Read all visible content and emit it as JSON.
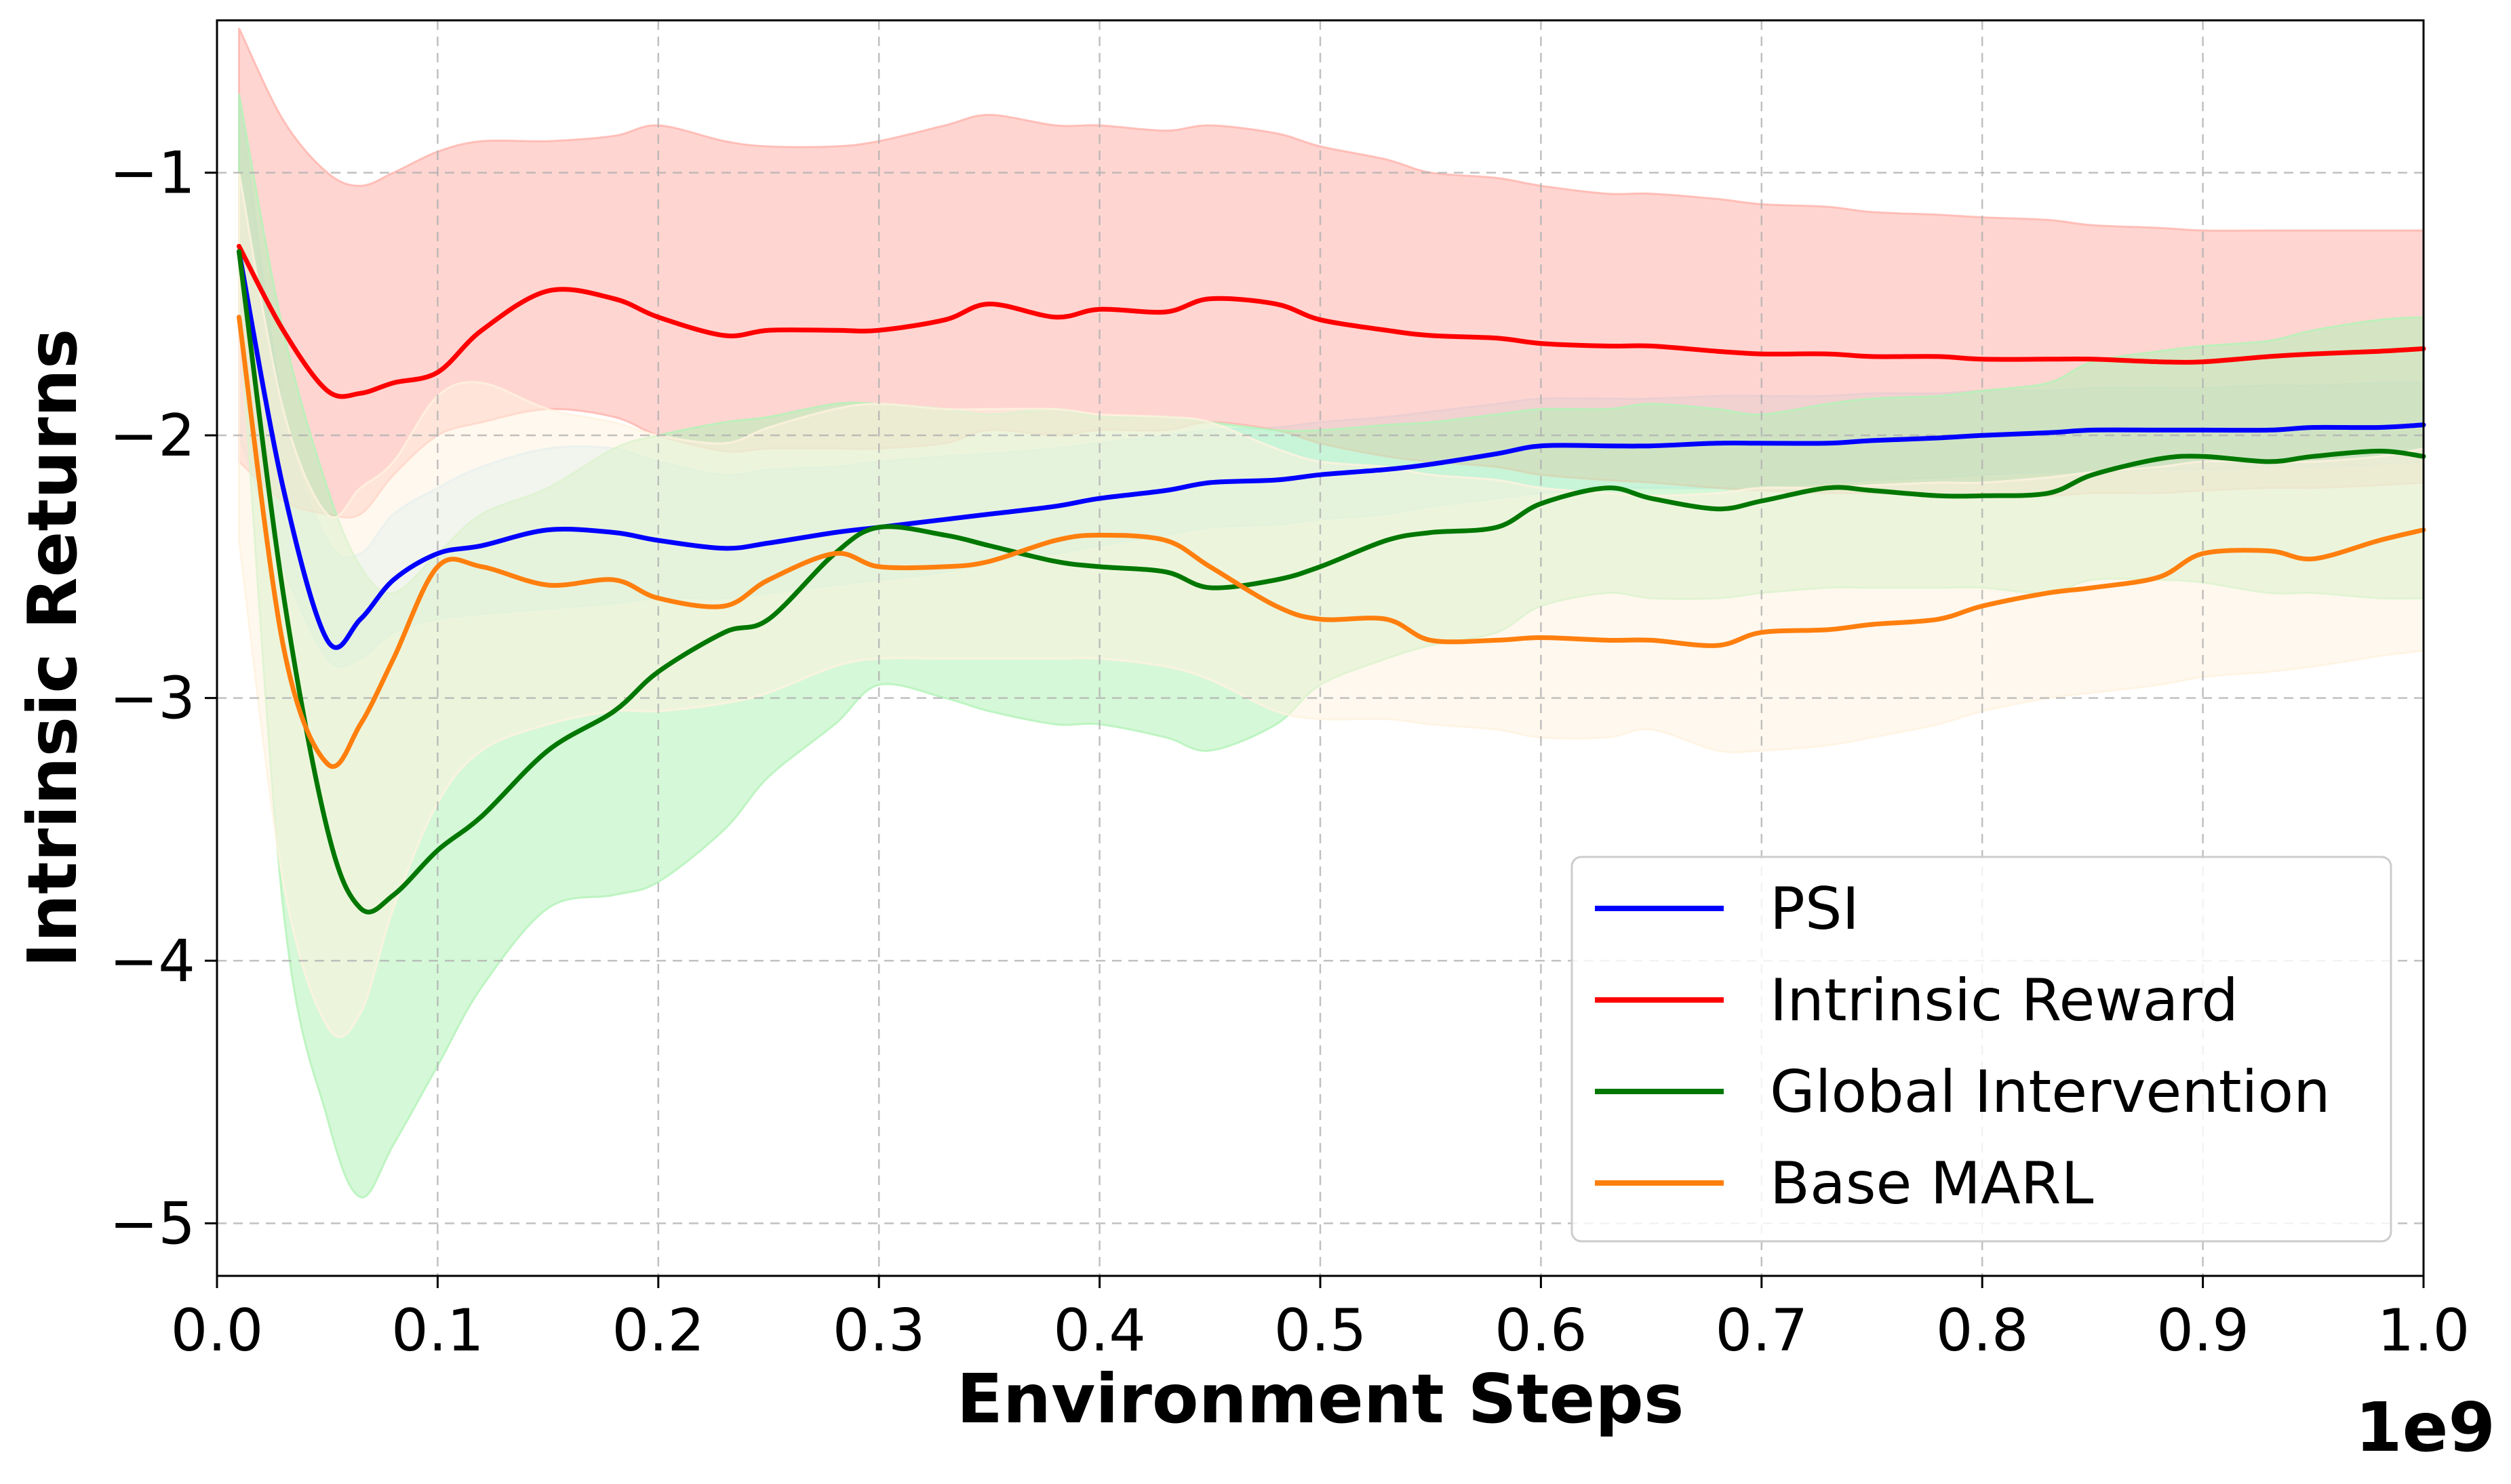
{
  "chart_data": {
    "type": "line",
    "title": "",
    "xlabel": "Environment Steps",
    "ylabel": "Intrinsic Returns",
    "x_offset_label": "1e9",
    "xlim": [
      0.0,
      1.0
    ],
    "ylim": [
      -5.2,
      -0.42
    ],
    "xticks": [
      0.0,
      0.1,
      0.2,
      0.3,
      0.4,
      0.5,
      0.6,
      0.7,
      0.8,
      0.9,
      1.0
    ],
    "xtick_labels": [
      "0.0",
      "0.1",
      "0.2",
      "0.3",
      "0.4",
      "0.5",
      "0.6",
      "0.7",
      "0.8",
      "0.9",
      "1.0"
    ],
    "yticks": [
      -5,
      -4,
      -3,
      -2,
      -1
    ],
    "ytick_labels": [
      "−5",
      "−4",
      "−3",
      "−2",
      "−1"
    ],
    "grid": true,
    "legend_position": "bottom-right",
    "x": [
      0.01,
      0.03,
      0.05,
      0.065,
      0.08,
      0.1,
      0.12,
      0.15,
      0.18,
      0.2,
      0.23,
      0.25,
      0.28,
      0.3,
      0.33,
      0.35,
      0.38,
      0.4,
      0.43,
      0.45,
      0.48,
      0.5,
      0.53,
      0.55,
      0.58,
      0.6,
      0.63,
      0.65,
      0.68,
      0.7,
      0.73,
      0.75,
      0.78,
      0.8,
      0.83,
      0.85,
      0.88,
      0.9,
      0.93,
      0.95,
      0.98,
      1.0
    ],
    "series": [
      {
        "name": "PSI",
        "color": "#0000ff",
        "band_color": "#cceeff",
        "values": [
          -1.3,
          -2.2,
          -2.78,
          -2.7,
          -2.55,
          -2.45,
          -2.42,
          -2.36,
          -2.37,
          -2.4,
          -2.43,
          -2.41,
          -2.37,
          -2.35,
          -2.32,
          -2.3,
          -2.27,
          -2.24,
          -2.21,
          -2.18,
          -2.17,
          -2.15,
          -2.13,
          -2.11,
          -2.07,
          -2.04,
          -2.04,
          -2.04,
          -2.03,
          -2.03,
          -2.03,
          -2.02,
          -2.01,
          -2.0,
          -1.99,
          -1.98,
          -1.98,
          -1.98,
          -1.98,
          -1.97,
          -1.97,
          -1.96
        ],
        "lower": [
          -2.0,
          -2.5,
          -2.85,
          -2.85,
          -2.75,
          -2.7,
          -2.68,
          -2.66,
          -2.64,
          -2.62,
          -2.62,
          -2.6,
          -2.57,
          -2.55,
          -2.52,
          -2.48,
          -2.45,
          -2.42,
          -2.38,
          -2.35,
          -2.34,
          -2.32,
          -2.3,
          -2.27,
          -2.24,
          -2.22,
          -2.2,
          -2.2,
          -2.2,
          -2.19,
          -2.18,
          -2.17,
          -2.16,
          -2.15,
          -2.14,
          -2.14,
          -2.13,
          -2.13,
          -2.12,
          -2.12,
          -2.11,
          -2.1
        ],
        "upper": [
          -0.7,
          -1.9,
          -2.4,
          -2.45,
          -2.3,
          -2.2,
          -2.12,
          -2.05,
          -2.05,
          -2.1,
          -2.15,
          -2.13,
          -2.12,
          -2.1,
          -2.08,
          -2.07,
          -2.05,
          -2.03,
          -2.0,
          -1.98,
          -1.97,
          -1.95,
          -1.93,
          -1.91,
          -1.88,
          -1.86,
          -1.86,
          -1.86,
          -1.85,
          -1.85,
          -1.85,
          -1.84,
          -1.84,
          -1.83,
          -1.83,
          -1.82,
          -1.82,
          -1.82,
          -1.81,
          -1.81,
          -1.8,
          -1.8
        ]
      },
      {
        "name": "Intrinsic Reward",
        "color": "#ff0000",
        "band_color": "#ffb3ab",
        "values": [
          -1.28,
          -1.6,
          -1.83,
          -1.84,
          -1.8,
          -1.76,
          -1.6,
          -1.45,
          -1.48,
          -1.55,
          -1.62,
          -1.6,
          -1.6,
          -1.6,
          -1.56,
          -1.5,
          -1.55,
          -1.52,
          -1.53,
          -1.48,
          -1.5,
          -1.56,
          -1.6,
          -1.62,
          -1.63,
          -1.65,
          -1.66,
          -1.66,
          -1.68,
          -1.69,
          -1.69,
          -1.7,
          -1.7,
          -1.71,
          -1.71,
          -1.71,
          -1.72,
          -1.72,
          -1.7,
          -1.69,
          -1.68,
          -1.67
        ],
        "lower": [
          -2.1,
          -2.25,
          -2.3,
          -2.3,
          -2.15,
          -2.0,
          -1.95,
          -1.9,
          -1.93,
          -2.0,
          -2.06,
          -2.05,
          -2.05,
          -2.05,
          -2.03,
          -1.98,
          -2.0,
          -1.98,
          -1.98,
          -1.95,
          -1.98,
          -2.03,
          -2.08,
          -2.1,
          -2.12,
          -2.15,
          -2.17,
          -2.18,
          -2.2,
          -2.21,
          -2.22,
          -2.22,
          -2.23,
          -2.23,
          -2.23,
          -2.22,
          -2.22,
          -2.21,
          -2.2,
          -2.2,
          -2.19,
          -2.18
        ],
        "upper": [
          -0.45,
          -0.8,
          -1.0,
          -1.05,
          -1.0,
          -0.92,
          -0.88,
          -0.88,
          -0.86,
          -0.82,
          -0.88,
          -0.9,
          -0.9,
          -0.88,
          -0.82,
          -0.78,
          -0.82,
          -0.82,
          -0.84,
          -0.82,
          -0.85,
          -0.9,
          -0.95,
          -1.0,
          -1.02,
          -1.05,
          -1.08,
          -1.08,
          -1.1,
          -1.12,
          -1.13,
          -1.15,
          -1.16,
          -1.17,
          -1.18,
          -1.2,
          -1.21,
          -1.22,
          -1.22,
          -1.22,
          -1.22,
          -1.22
        ]
      },
      {
        "name": "Global Intervention",
        "color": "#007700",
        "band_color": "#b3f2b8",
        "values": [
          -1.3,
          -2.6,
          -3.5,
          -3.8,
          -3.75,
          -3.58,
          -3.45,
          -3.2,
          -3.05,
          -2.9,
          -2.75,
          -2.7,
          -2.45,
          -2.35,
          -2.38,
          -2.42,
          -2.48,
          -2.5,
          -2.52,
          -2.58,
          -2.55,
          -2.5,
          -2.4,
          -2.37,
          -2.35,
          -2.26,
          -2.2,
          -2.24,
          -2.28,
          -2.25,
          -2.2,
          -2.21,
          -2.23,
          -2.23,
          -2.22,
          -2.15,
          -2.09,
          -2.08,
          -2.1,
          -2.08,
          -2.06,
          -2.08
        ],
        "lower": [
          -1.5,
          -3.8,
          -4.6,
          -4.9,
          -4.7,
          -4.4,
          -4.1,
          -3.8,
          -3.75,
          -3.7,
          -3.5,
          -3.3,
          -3.1,
          -2.95,
          -3.0,
          -3.05,
          -3.1,
          -3.1,
          -3.15,
          -3.2,
          -3.1,
          -2.95,
          -2.85,
          -2.8,
          -2.75,
          -2.65,
          -2.6,
          -2.62,
          -2.62,
          -2.6,
          -2.58,
          -2.58,
          -2.58,
          -2.58,
          -2.6,
          -2.55,
          -2.55,
          -2.56,
          -2.6,
          -2.6,
          -2.62,
          -2.62
        ],
        "upper": [
          -0.7,
          -1.6,
          -2.2,
          -2.5,
          -2.6,
          -2.45,
          -2.3,
          -2.2,
          -2.05,
          -2.0,
          -1.95,
          -1.93,
          -1.88,
          -1.88,
          -1.9,
          -1.92,
          -1.9,
          -1.93,
          -1.93,
          -1.95,
          -1.98,
          -1.98,
          -1.96,
          -1.95,
          -1.92,
          -1.9,
          -1.9,
          -1.88,
          -1.9,
          -1.92,
          -1.88,
          -1.86,
          -1.85,
          -1.83,
          -1.8,
          -1.72,
          -1.68,
          -1.66,
          -1.64,
          -1.6,
          -1.56,
          -1.55
        ]
      },
      {
        "name": "Base MARL",
        "color": "#ff7f0e",
        "band_color": "#fff2e0",
        "values": [
          -1.55,
          -2.8,
          -3.25,
          -3.1,
          -2.85,
          -2.5,
          -2.5,
          -2.57,
          -2.55,
          -2.62,
          -2.65,
          -2.55,
          -2.45,
          -2.5,
          -2.5,
          -2.48,
          -2.4,
          -2.38,
          -2.4,
          -2.5,
          -2.65,
          -2.7,
          -2.7,
          -2.78,
          -2.78,
          -2.77,
          -2.78,
          -2.78,
          -2.8,
          -2.75,
          -2.74,
          -2.72,
          -2.7,
          -2.65,
          -2.6,
          -2.58,
          -2.54,
          -2.45,
          -2.44,
          -2.47,
          -2.4,
          -2.36
        ],
        "lower": [
          -2.4,
          -3.7,
          -4.25,
          -4.2,
          -3.8,
          -3.4,
          -3.2,
          -3.1,
          -3.05,
          -3.05,
          -3.02,
          -2.98,
          -2.88,
          -2.85,
          -2.85,
          -2.85,
          -2.85,
          -2.85,
          -2.88,
          -2.93,
          -3.05,
          -3.08,
          -3.08,
          -3.1,
          -3.12,
          -3.15,
          -3.15,
          -3.12,
          -3.2,
          -3.2,
          -3.18,
          -3.15,
          -3.1,
          -3.05,
          -3.0,
          -2.98,
          -2.95,
          -2.92,
          -2.9,
          -2.88,
          -2.84,
          -2.82
        ],
        "upper": [
          -1.0,
          -1.9,
          -2.3,
          -2.2,
          -2.1,
          -1.85,
          -1.8,
          -1.9,
          -1.95,
          -2.0,
          -2.03,
          -1.97,
          -1.9,
          -1.88,
          -1.9,
          -1.9,
          -1.9,
          -1.92,
          -1.93,
          -1.95,
          -2.05,
          -2.1,
          -2.12,
          -2.15,
          -2.17,
          -2.2,
          -2.22,
          -2.23,
          -2.22,
          -2.2,
          -2.2,
          -2.19,
          -2.18,
          -2.18,
          -2.16,
          -2.14,
          -2.12,
          -2.1,
          -2.1,
          -2.1,
          -2.08,
          -2.05
        ]
      }
    ]
  }
}
